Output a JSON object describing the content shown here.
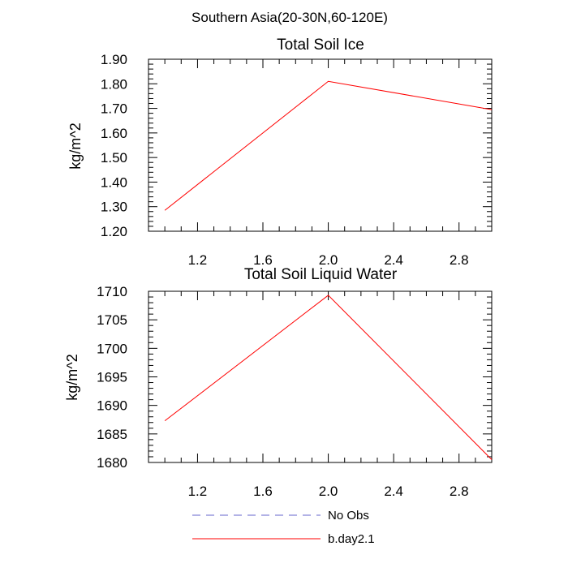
{
  "page_title": "Southern Asia(20-30N,60-120E)",
  "chart_data": [
    {
      "type": "line",
      "title": "Total Soil Ice",
      "xlabel": "",
      "ylabel": "kg/m^2",
      "xlim": [
        0.9,
        3.0
      ],
      "ylim": [
        1.2,
        1.9
      ],
      "x_ticks": [
        1.2,
        1.6,
        2.0,
        2.4,
        2.8
      ],
      "x_tick_labels": [
        "1.2",
        "1.6",
        "2.0",
        "2.4",
        "2.8"
      ],
      "y_ticks": [
        1.2,
        1.3,
        1.4,
        1.5,
        1.6,
        1.7,
        1.8,
        1.9
      ],
      "y_tick_labels": [
        "1.20",
        "1.30",
        "1.40",
        "1.50",
        "1.60",
        "1.70",
        "1.80",
        "1.90"
      ],
      "series": [
        {
          "name": "b.day2.1",
          "color": "#ff0000",
          "x": [
            1.0,
            2.0,
            3.0
          ],
          "values": [
            1.285,
            1.81,
            1.695
          ]
        }
      ]
    },
    {
      "type": "line",
      "title": "Total Soil Liquid Water",
      "xlabel": "",
      "ylabel": "kg/m^2",
      "xlim": [
        0.9,
        3.0
      ],
      "ylim": [
        1680,
        1710
      ],
      "x_ticks": [
        1.2,
        1.6,
        2.0,
        2.4,
        2.8
      ],
      "x_tick_labels": [
        "1.2",
        "1.6",
        "2.0",
        "2.4",
        "2.8"
      ],
      "y_ticks": [
        1680,
        1685,
        1690,
        1695,
        1700,
        1705,
        1710
      ],
      "y_tick_labels": [
        "1680",
        "1685",
        "1690",
        "1695",
        "1700",
        "1705",
        "1710"
      ],
      "series": [
        {
          "name": "b.day2.1",
          "color": "#ff0000",
          "x": [
            1.0,
            2.0,
            3.0
          ],
          "values": [
            1687.3,
            1709.3,
            1680.5
          ]
        }
      ]
    }
  ],
  "legend": {
    "position": "bottom",
    "items": [
      {
        "label": "No Obs",
        "color": "#6666cc",
        "style": "dashed"
      },
      {
        "label": "b.day2.1",
        "color": "#ff0000",
        "style": "solid"
      }
    ]
  }
}
